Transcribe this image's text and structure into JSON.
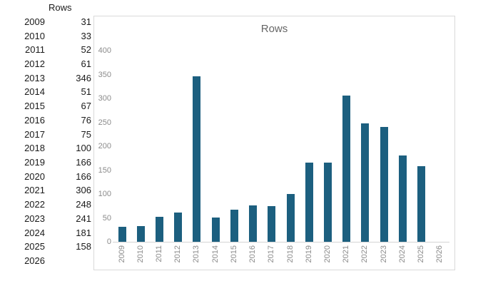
{
  "table": {
    "header": "Rows",
    "rows": [
      {
        "year": "2009",
        "value": "31"
      },
      {
        "year": "2010",
        "value": "33"
      },
      {
        "year": "2011",
        "value": "52"
      },
      {
        "year": "2012",
        "value": "61"
      },
      {
        "year": "2013",
        "value": "346"
      },
      {
        "year": "2014",
        "value": "51"
      },
      {
        "year": "2015",
        "value": "67"
      },
      {
        "year": "2016",
        "value": "76"
      },
      {
        "year": "2017",
        "value": "75"
      },
      {
        "year": "2018",
        "value": "100"
      },
      {
        "year": "2019",
        "value": "166"
      },
      {
        "year": "2020",
        "value": "166"
      },
      {
        "year": "2021",
        "value": "306"
      },
      {
        "year": "2022",
        "value": "248"
      },
      {
        "year": "2023",
        "value": "241"
      },
      {
        "year": "2024",
        "value": "181"
      },
      {
        "year": "2025",
        "value": "158"
      },
      {
        "year": "2026",
        "value": ""
      }
    ]
  },
  "chart_data": {
    "type": "bar",
    "title": "Rows",
    "categories": [
      "2009",
      "2010",
      "2011",
      "2012",
      "2013",
      "2014",
      "2015",
      "2016",
      "2017",
      "2018",
      "2019",
      "2020",
      "2021",
      "2022",
      "2023",
      "2024",
      "2025",
      "2026"
    ],
    "values": [
      31,
      33,
      52,
      61,
      346,
      51,
      67,
      76,
      75,
      100,
      166,
      166,
      306,
      248,
      241,
      181,
      158,
      null
    ],
    "xlabel": "",
    "ylabel": "",
    "ylim": [
      0,
      400
    ],
    "y_ticks": [
      0,
      50,
      100,
      150,
      200,
      250,
      300,
      350,
      400
    ],
    "grid": false,
    "legend": false,
    "bar_color": "#1c5f7f",
    "axis_label_color": "#8b8b8b",
    "title_color": "#666666",
    "border_color": "#d9d9d9"
  }
}
